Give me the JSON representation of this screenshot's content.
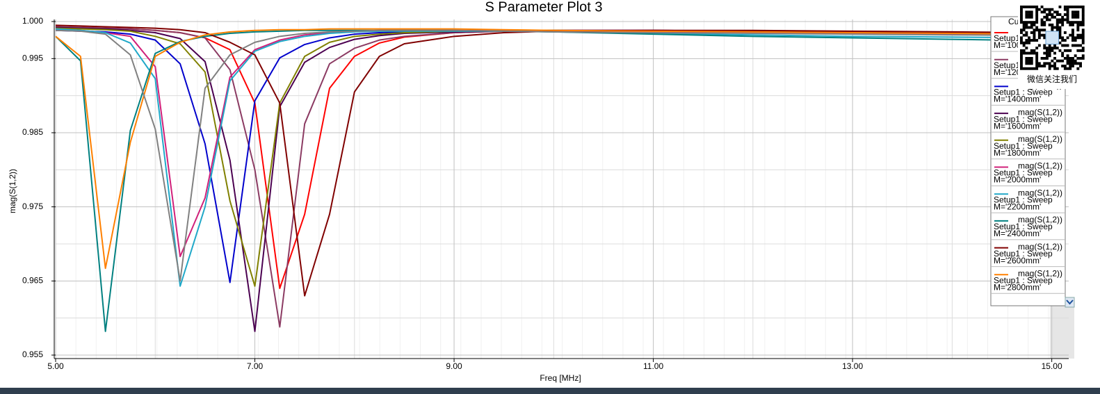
{
  "chart_data": {
    "type": "line",
    "title": "S Parameter Plot 3",
    "xlabel": "Freq [MHz]",
    "ylabel": "mag(S(1,2))",
    "legend_title": "Cu",
    "overlay_caption": "微信关注我们",
    "grid": true,
    "legend": "upper right",
    "xlim": [
      5,
      15.17
    ],
    "ylim": [
      0.95453,
      1.00028
    ],
    "xticks": [
      {
        "value": 5,
        "label": "5.00"
      },
      {
        "value": 7,
        "label": "7.00"
      },
      {
        "value": 9,
        "label": "9.00"
      },
      {
        "value": 11,
        "label": "11.00"
      },
      {
        "value": 13,
        "label": "13.00"
      },
      {
        "value": 15,
        "label": "15.00"
      }
    ],
    "xticks_minor": [
      6,
      8,
      10,
      12,
      14
    ],
    "yticks": [
      {
        "value": 1,
        "label": "1.000"
      },
      0.995,
      0.985,
      0.975,
      0.965,
      0.955
    ],
    "yticks_minor": [
      0.99,
      0.98,
      0.97,
      0.96
    ],
    "x": [
      5,
      5.25,
      5.5,
      5.75,
      6,
      6.25,
      6.5,
      6.75,
      7,
      7.25,
      7.5,
      7.75,
      8,
      8.25,
      8.5,
      9,
      9.5,
      10,
      11,
      12,
      13,
      14,
      15
    ],
    "series": [
      {
        "name": "mag(S(1,2))",
        "setup": "Setup1 : Sweep",
        "variation": "M='1000mm'",
        "color": "#ff0000",
        "values": [
          0.9993,
          0.9992,
          0.9991,
          0.999,
          0.9988,
          0.9985,
          0.9978,
          0.9962,
          0.989,
          0.964,
          0.974,
          0.991,
          0.9953,
          0.9971,
          0.9979,
          0.9985,
          0.9987,
          0.9988,
          0.9988,
          0.9987,
          0.9986,
          0.9985,
          0.9984
        ]
      },
      {
        "name": "mag(S(1,2))",
        "setup": "Setup1 : Sweep",
        "variation": "M='1200mm'",
        "color": "#8b3a62",
        "values": [
          0.9993,
          0.9992,
          0.9991,
          0.999,
          0.9988,
          0.9985,
          0.9978,
          0.9935,
          0.98,
          0.9588,
          0.9862,
          0.9943,
          0.9964,
          0.9975,
          0.998,
          0.9985,
          0.9987,
          0.9988,
          0.9988,
          0.9987,
          0.9986,
          0.9985,
          0.9983
        ]
      },
      {
        "name": "mag(S(1,2))",
        "setup": "Setup1 : Sweep",
        "variation": "M='1400mm'",
        "color": "#0000cc",
        "values": [
          0.9988,
          0.9987,
          0.9986,
          0.9983,
          0.9975,
          0.9943,
          0.9835,
          0.9648,
          0.9893,
          0.9951,
          0.9969,
          0.9978,
          0.9983,
          0.9985,
          0.9986,
          0.9987,
          0.9987,
          0.9987,
          0.9986,
          0.9985,
          0.9984,
          0.9983,
          0.9982
        ]
      },
      {
        "name": "mag(S(1,2))",
        "setup": "Setup1 : Sweep",
        "variation": "M='1600mm'",
        "color": "#4b0050",
        "values": [
          0.9992,
          0.9991,
          0.999,
          0.9988,
          0.9985,
          0.9977,
          0.9946,
          0.9813,
          0.9582,
          0.9885,
          0.9945,
          0.9965,
          0.9976,
          0.9981,
          0.9984,
          0.9986,
          0.9987,
          0.9988,
          0.9988,
          0.9987,
          0.9986,
          0.9985,
          0.9984
        ]
      },
      {
        "name": "mag(S(1,2))",
        "setup": "Setup1 : Sweep",
        "variation": "M='1800mm'",
        "color": "#808000",
        "values": [
          0.9991,
          0.999,
          0.9989,
          0.9987,
          0.998,
          0.997,
          0.9932,
          0.9758,
          0.9643,
          0.989,
          0.9953,
          0.9972,
          0.998,
          0.9983,
          0.9985,
          0.9987,
          0.9988,
          0.9988,
          0.9987,
          0.9986,
          0.9985,
          0.9984,
          0.9983
        ]
      },
      {
        "name": "mag(S(1,2))",
        "setup": "Setup1 : Sweep",
        "variation": "M='2000mm'",
        "color": "#d0207a",
        "values": [
          0.999,
          0.9988,
          0.9985,
          0.998,
          0.9939,
          0.9683,
          0.9762,
          0.9925,
          0.9962,
          0.9975,
          0.9982,
          0.9985,
          0.9987,
          0.9988,
          0.9988,
          0.9988,
          0.9988,
          0.9987,
          0.9986,
          0.9985,
          0.9984,
          0.9983,
          0.9982
        ]
      },
      {
        "name": "mag(S(1,2))",
        "setup": "Setup1 : Sweep",
        "variation": "M='2200mm'",
        "color": "#20a8c8",
        "values": [
          0.999,
          0.9988,
          0.9985,
          0.9971,
          0.9923,
          0.9643,
          0.975,
          0.992,
          0.996,
          0.9973,
          0.998,
          0.9984,
          0.9986,
          0.9987,
          0.9987,
          0.9987,
          0.9987,
          0.9986,
          0.9984,
          0.9982,
          0.998,
          0.9979,
          0.9978
        ]
      },
      {
        "name": "mag(S(1,2))",
        "setup": "Setup1 : Sweep",
        "variation": "M='2400mm'",
        "color": "#008080",
        "values": [
          0.998,
          0.9947,
          0.9582,
          0.9853,
          0.9957,
          0.9973,
          0.998,
          0.9984,
          0.9986,
          0.9987,
          0.9988,
          0.9988,
          0.9988,
          0.9988,
          0.9988,
          0.9988,
          0.9987,
          0.9986,
          0.9983,
          0.998,
          0.9978,
          0.9976,
          0.9974
        ]
      },
      {
        "name": "mag(S(1,2))",
        "setup": "Setup1 : Sweep",
        "variation": "M='2600mm'",
        "color": "#800000",
        "values": [
          0.9995,
          0.9994,
          0.9993,
          0.9992,
          0.9991,
          0.9989,
          0.9985,
          0.9972,
          0.9955,
          0.989,
          0.963,
          0.974,
          0.9905,
          0.9953,
          0.997,
          0.998,
          0.9985,
          0.9987,
          0.9988,
          0.9988,
          0.9987,
          0.9986,
          0.9985
        ]
      },
      {
        "name": "mag(S(1,2))",
        "setup": "Setup1 : Sweep",
        "variation": "M='2800mm'",
        "color": "#ff8000",
        "values": [
          0.998,
          0.9953,
          0.9667,
          0.9837,
          0.9953,
          0.9972,
          0.9982,
          0.9986,
          0.9988,
          0.9989,
          0.9989,
          0.999,
          0.999,
          0.999,
          0.999,
          0.999,
          0.9989,
          0.9988,
          0.9987,
          0.9986,
          0.9985,
          0.9984,
          0.9983
        ]
      },
      {
        "color": "#808080",
        "values": [
          0.9988,
          0.9987,
          0.9983,
          0.9955,
          0.9855,
          0.965,
          0.991,
          0.9955,
          0.9972,
          0.998,
          0.9984,
          0.9986,
          0.9987,
          0.9988,
          0.9988,
          0.9988,
          0.9987,
          0.9986,
          0.9985,
          0.9984,
          0.9983,
          0.9982,
          0.9981
        ]
      }
    ]
  }
}
